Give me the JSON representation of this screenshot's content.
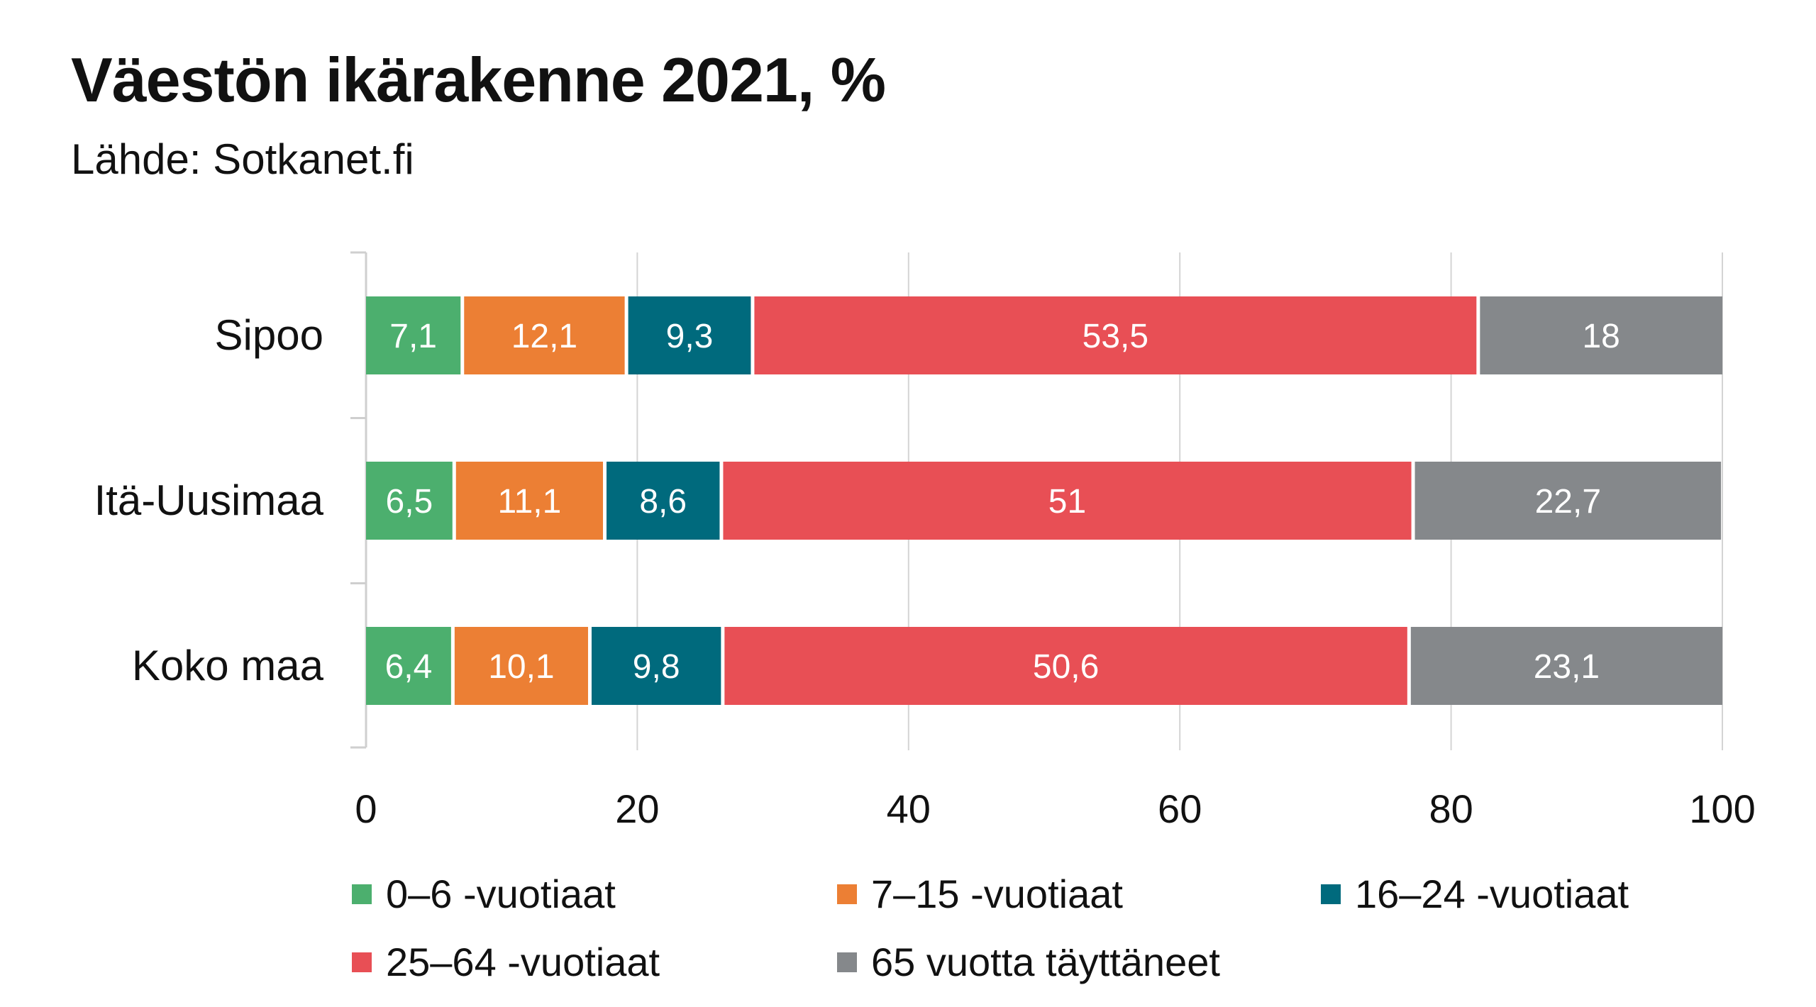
{
  "chart_data": {
    "type": "bar",
    "orientation": "horizontal",
    "stacked": true,
    "title": "Väestön ikärakenne 2021, %",
    "subtitle": "Lähde: Sotkanet.fi",
    "categories": [
      "Sipoo",
      "Itä-Uusimaa",
      "Koko maa"
    ],
    "series": [
      {
        "name": "0–6 -vuotiaat",
        "color": "#4caf6e",
        "values": [
          7.1,
          6.5,
          6.4
        ],
        "labels": [
          "7,1",
          "6,5",
          "6,4"
        ]
      },
      {
        "name": "7–15 -vuotiaat",
        "color": "#ec7f34",
        "values": [
          12.1,
          11.1,
          10.1
        ],
        "labels": [
          "12,1",
          "11,1",
          "10,1"
        ]
      },
      {
        "name": "16–24 -vuotiaat",
        "color": "#006a7d",
        "values": [
          9.3,
          8.6,
          9.8
        ],
        "labels": [
          "9,3",
          "8,6",
          "9,8"
        ]
      },
      {
        "name": "25–64 -vuotiaat",
        "color": "#e84f55",
        "values": [
          53.5,
          51,
          50.6
        ],
        "labels": [
          "53,5",
          "51",
          "50,6"
        ]
      },
      {
        "name": "65 vuotta täyttäneet",
        "color": "#85888b",
        "values": [
          18,
          22.7,
          23.1
        ],
        "labels": [
          "18",
          "22,7",
          "23,1"
        ]
      }
    ],
    "xlim": [
      0,
      100
    ],
    "xticks": [
      0,
      20,
      40,
      60,
      80,
      100
    ],
    "xtick_labels": [
      "0",
      "20",
      "40",
      "60",
      "80",
      "100"
    ],
    "grid": true,
    "legend_position": "bottom"
  }
}
